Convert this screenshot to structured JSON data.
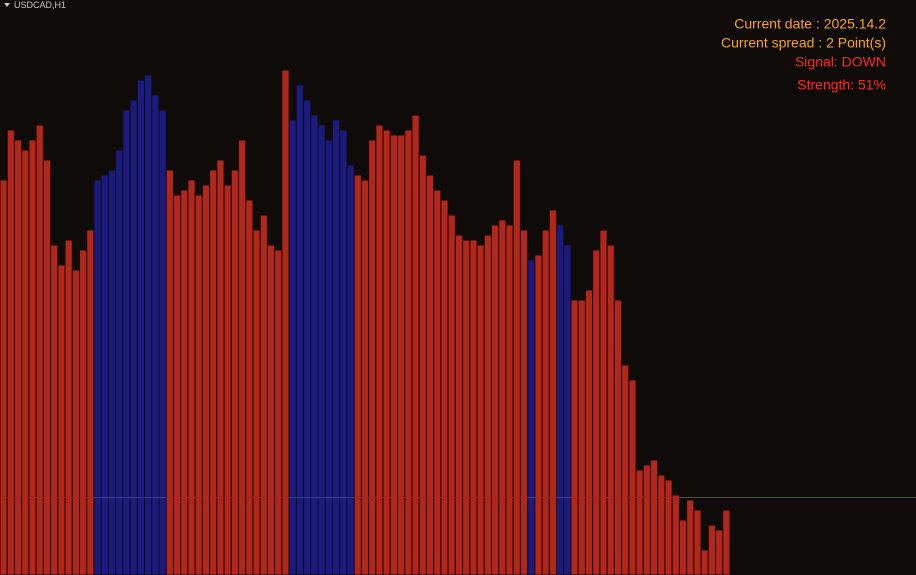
{
  "header": {
    "symbol": "USDCAD,H1"
  },
  "info": [
    "Current date : 2025.14.2",
    "Current spread : 2 Point(s)",
    "Signal: DOWN",
    "Strength: 51%"
  ],
  "chart_data": {
    "type": "bar",
    "ylim": [
      1.415,
      1.438
    ],
    "bid_line": 1.4181,
    "values": [
      1.4308,
      1.4328,
      1.4324,
      1.432,
      1.4324,
      1.433,
      1.4316,
      1.4282,
      1.4274,
      1.4284,
      1.4272,
      1.428,
      1.4288,
      1.4308,
      1.431,
      1.4312,
      1.432,
      1.4336,
      1.434,
      1.4348,
      1.435,
      1.4342,
      1.4336,
      1.4312,
      1.4302,
      1.4304,
      1.4308,
      1.4302,
      1.4306,
      1.4312,
      1.4316,
      1.4306,
      1.4312,
      1.4324,
      1.43,
      1.4288,
      1.4294,
      1.4282,
      1.428,
      1.4352,
      1.4332,
      1.4346,
      1.434,
      1.4334,
      1.433,
      1.4324,
      1.4332,
      1.4328,
      1.4314,
      1.431,
      1.4308,
      1.4324,
      1.433,
      1.4328,
      1.4326,
      1.4326,
      1.4328,
      1.4334,
      1.4318,
      1.431,
      1.4304,
      1.43,
      1.4294,
      1.4286,
      1.4284,
      1.4284,
      1.4282,
      1.4286,
      1.429,
      1.4292,
      1.429,
      1.4316,
      1.4288,
      1.4276,
      1.4278,
      1.4288,
      1.4296,
      1.429,
      1.4282,
      1.426,
      1.426,
      1.4264,
      1.428,
      1.4288,
      1.4282,
      1.426,
      1.4234,
      1.4228,
      1.4192,
      1.4194,
      1.4196,
      1.419,
      1.4188,
      1.4182,
      1.4172,
      1.418,
      1.4176,
      1.416,
      1.417,
      1.4168,
      1.4176
    ],
    "colors": [
      "#b3261a",
      "#b3261a",
      "#b3261a",
      "#b3261a",
      "#b3261a",
      "#b3261a",
      "#b3261a",
      "#b3261a",
      "#b3261a",
      "#b3261a",
      "#b3261a",
      "#b3261a",
      "#b3261a",
      "#1a1a80",
      "#1a1a80",
      "#1a1a80",
      "#1a1a80",
      "#1a1a80",
      "#1a1a80",
      "#1a1a80",
      "#1a1a80",
      "#1a1a80",
      "#1a1a80",
      "#b3261a",
      "#b3261a",
      "#b3261a",
      "#b3261a",
      "#b3261a",
      "#b3261a",
      "#b3261a",
      "#b3261a",
      "#b3261a",
      "#b3261a",
      "#b3261a",
      "#b3261a",
      "#b3261a",
      "#b3261a",
      "#b3261a",
      "#b3261a",
      "#b3261a",
      "#1a1a80",
      "#1a1a80",
      "#1a1a80",
      "#1a1a80",
      "#1a1a80",
      "#1a1a80",
      "#1a1a80",
      "#1a1a80",
      "#1a1a80",
      "#b3261a",
      "#b3261a",
      "#b3261a",
      "#b3261a",
      "#b3261a",
      "#b3261a",
      "#b3261a",
      "#b3261a",
      "#b3261a",
      "#b3261a",
      "#b3261a",
      "#b3261a",
      "#b3261a",
      "#b3261a",
      "#b3261a",
      "#b3261a",
      "#b3261a",
      "#b3261a",
      "#b3261a",
      "#b3261a",
      "#b3261a",
      "#b3261a",
      "#b3261a",
      "#b3261a",
      "#1a1a80",
      "#b3261a",
      "#b3261a",
      "#b3261a",
      "#1a1a80",
      "#1a1a80",
      "#b3261a",
      "#b3261a",
      "#b3261a",
      "#b3261a",
      "#b3261a",
      "#b3261a",
      "#b3261a",
      "#b3261a",
      "#b3261a",
      "#b3261a",
      "#b3261a",
      "#b3261a",
      "#b3261a",
      "#b3261a",
      "#b3261a",
      "#b3261a",
      "#b3261a",
      "#b3261a",
      "#b3261a",
      "#b3261a",
      "#b3261a",
      "#b3261a",
      "#b3261a",
      "#b3261a"
    ]
  }
}
